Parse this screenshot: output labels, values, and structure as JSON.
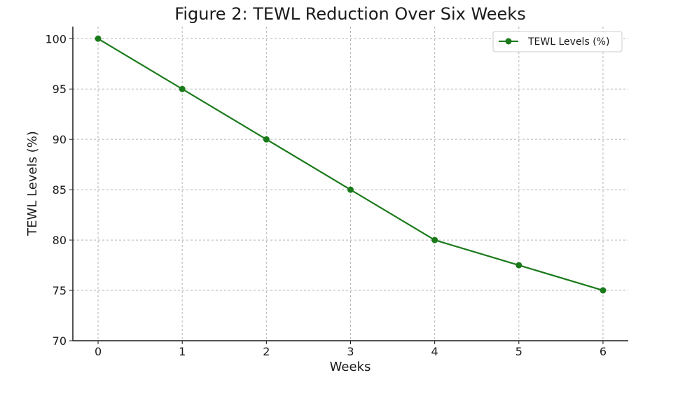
{
  "colors": {
    "series": "#1a7a1a",
    "grid": "#b5b5b5",
    "axis": "#1a1a1a",
    "legend_border": "#cccccc"
  },
  "chart_data": {
    "type": "line",
    "title": "Figure 2: TEWL Reduction Over Six Weeks",
    "xlabel": "Weeks",
    "ylabel": "TEWL Levels (%)",
    "x": [
      0,
      1,
      2,
      3,
      4,
      5,
      6
    ],
    "series": [
      {
        "name": "TEWL Levels (%)",
        "values": [
          100,
          95,
          90,
          85,
          80,
          77.5,
          75
        ],
        "marker": "circle"
      }
    ],
    "xlim": [
      -0.3,
      6.3
    ],
    "ylim": [
      70,
      101.2
    ],
    "xticks": [
      "0",
      "1",
      "2",
      "3",
      "4",
      "5",
      "6"
    ],
    "yticks": [
      "70",
      "75",
      "80",
      "85",
      "90",
      "95",
      "100"
    ],
    "grid": true,
    "grid_style": "dashed",
    "legend_position": "top-right"
  }
}
